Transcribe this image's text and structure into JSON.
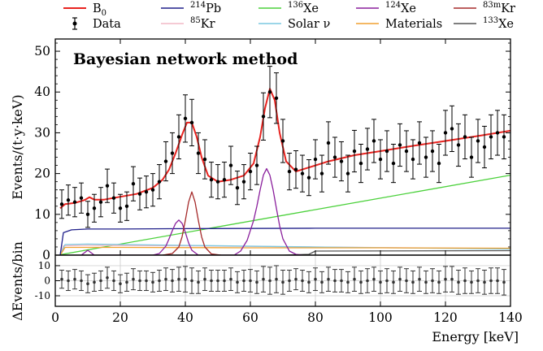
{
  "chart_data": [
    {
      "type": "line",
      "title": "Bayesian network method",
      "ylabel": "Events/(t·y·keV)",
      "xlim": [
        0,
        140
      ],
      "ylim": [
        0,
        53
      ],
      "xticks": [
        0,
        20,
        40,
        60,
        80,
        100,
        120,
        140
      ],
      "yticks": [
        0,
        10,
        20,
        30,
        40,
        50
      ],
      "legend_placement": "above plot",
      "legend": [
        {
          "key": "b0",
          "pre": "B",
          "sub": "0",
          "sup": "",
          "post": "",
          "color": "#e8231f",
          "kind": "line"
        },
        {
          "key": "data",
          "pre": "Data",
          "sub": "",
          "sup": "",
          "post": "",
          "color": "#000000",
          "kind": "errorbar"
        },
        {
          "key": "pb214",
          "pre": "",
          "sub": "",
          "sup": "214",
          "post": "Pb",
          "color": "#1f1f8a",
          "kind": "line"
        },
        {
          "key": "kr85",
          "pre": "",
          "sub": "",
          "sup": "85",
          "post": "Kr",
          "color": "#f2b8c6",
          "kind": "line"
        },
        {
          "key": "xe136",
          "pre": "",
          "sub": "",
          "sup": "136",
          "post": "Xe",
          "color": "#4bd13b",
          "kind": "line"
        },
        {
          "key": "solar",
          "pre": "Solar ν",
          "sub": "",
          "sup": "",
          "post": "",
          "color": "#7cc8e0",
          "kind": "line"
        },
        {
          "key": "xe124",
          "pre": "",
          "sub": "",
          "sup": "124",
          "post": "Xe",
          "color": "#8a1f9c",
          "kind": "line"
        },
        {
          "key": "materials",
          "pre": "Materials",
          "sub": "",
          "sup": "",
          "post": "",
          "color": "#f0a030",
          "kind": "line"
        },
        {
          "key": "kr83m",
          "pre": "",
          "sub": "",
          "sup": "83m",
          "post": "Kr",
          "color": "#a52a2a",
          "kind": "line"
        },
        {
          "key": "xe133",
          "pre": "",
          "sub": "",
          "sup": "133",
          "post": "Xe",
          "color": "#555555",
          "kind": "line"
        }
      ],
      "series": [
        {
          "name": "B0",
          "color": "#e8231f",
          "x": [
            1.5,
            3,
            6,
            9,
            10.5,
            12,
            15,
            20,
            25,
            30,
            33,
            35,
            37,
            39,
            40.5,
            42,
            43.5,
            45,
            47,
            50,
            54,
            58,
            61,
            63,
            64.5,
            66,
            67.5,
            69,
            71,
            74,
            78,
            84,
            92,
            100,
            110,
            120,
            130,
            140
          ],
          "y": [
            11.5,
            12.5,
            12.8,
            13.5,
            14.2,
            13.6,
            13.6,
            14.3,
            15,
            16.5,
            18.5,
            21,
            25,
            29.5,
            32.5,
            32.5,
            29,
            24,
            19.5,
            18,
            18.5,
            19.5,
            22.5,
            29,
            36,
            40.8,
            38,
            30,
            23,
            20.5,
            21.5,
            23,
            24.5,
            25.5,
            26.8,
            28,
            29.2,
            30.5
          ]
        },
        {
          "name": "214Pb",
          "color": "#1f1f8a",
          "x": [
            1.5,
            2.5,
            5,
            10,
            20,
            40,
            80,
            140
          ],
          "y": [
            0,
            5.5,
            6.2,
            6.4,
            6.4,
            6.5,
            6.6,
            6.6
          ]
        },
        {
          "name": "136Xe",
          "color": "#4bd13b",
          "x": [
            1.5,
            140
          ],
          "y": [
            0.1,
            19.6
          ]
        },
        {
          "name": "85Kr",
          "color": "#f2b8c6",
          "x": [
            1.5,
            2.5,
            10,
            40,
            80,
            140
          ],
          "y": [
            0,
            2.3,
            2.4,
            2.3,
            2.0,
            1.6
          ]
        },
        {
          "name": "Solar ν",
          "color": "#7cc8e0",
          "x": [
            1.5,
            3,
            10,
            40,
            80,
            140
          ],
          "y": [
            0,
            2.6,
            2.7,
            2.4,
            2.0,
            1.5
          ]
        },
        {
          "name": "Materials",
          "color": "#f0a030",
          "x": [
            1.5,
            3,
            20,
            60,
            100,
            140
          ],
          "y": [
            0,
            1.9,
            1.9,
            1.8,
            1.8,
            1.7
          ]
        },
        {
          "name": "133Xe",
          "color": "#555555",
          "x": [
            1.5,
            70,
            78,
            80,
            140
          ],
          "y": [
            0,
            0,
            0.2,
            1.0,
            1.1
          ]
        },
        {
          "name": "124Xe",
          "color": "#8a1f9c",
          "x": [
            8,
            9,
            10,
            11,
            12,
            13,
            30,
            32,
            34,
            35,
            36,
            37,
            38,
            39,
            40,
            41,
            42,
            44,
            55,
            57,
            59,
            61,
            62,
            63,
            64,
            65,
            66,
            67,
            68,
            69,
            70,
            72,
            74,
            76
          ],
          "y": [
            0,
            0.6,
            1.2,
            0.6,
            0,
            0,
            0,
            0.4,
            2.2,
            4.0,
            6.0,
            7.8,
            8.6,
            7.8,
            5.6,
            3.0,
            1.2,
            0,
            0,
            1.0,
            3.6,
            8.5,
            12,
            16,
            19.6,
            21.2,
            19.6,
            16,
            11.5,
            7.2,
            4.0,
            1.0,
            0.2,
            0
          ]
        },
        {
          "name": "83mKr",
          "color": "#a52a2a",
          "x": [
            33,
            36,
            38,
            39,
            40,
            41,
            42,
            43,
            44,
            45,
            46,
            48,
            51
          ],
          "y": [
            0,
            0.4,
            2.0,
            4.5,
            8.5,
            13,
            15.5,
            13,
            8.5,
            4.5,
            2.0,
            0.3,
            0
          ]
        }
      ],
      "data_points": {
        "x": [
          2,
          4,
          6,
          8,
          10,
          12,
          14,
          16,
          18,
          20,
          22,
          24,
          26,
          28,
          30,
          32,
          34,
          36,
          38,
          40,
          42,
          44,
          46,
          48,
          50,
          52,
          54,
          56,
          58,
          60,
          62,
          64,
          66,
          68,
          70,
          72,
          74,
          76,
          78,
          80,
          82,
          84,
          86,
          88,
          90,
          92,
          94,
          96,
          98,
          100,
          102,
          104,
          106,
          108,
          110,
          112,
          114,
          116,
          118,
          120,
          122,
          124,
          126,
          128,
          130,
          132,
          134,
          136,
          138
        ],
        "y": [
          12.5,
          13.5,
          13.0,
          14.0,
          10.0,
          11.5,
          13.0,
          17.0,
          14.0,
          11.5,
          12.0,
          17.5,
          15.0,
          15.5,
          16.0,
          18.0,
          23.0,
          25.0,
          29.0,
          33.5,
          32.5,
          25.0,
          23.5,
          18.5,
          18.0,
          18.5,
          22.0,
          16.5,
          18.0,
          20.5,
          22.0,
          34.0,
          40.0,
          38.5,
          28.0,
          20.5,
          21.0,
          20.0,
          19.0,
          23.5,
          20.0,
          27.5,
          24.0,
          23.0,
          20.0,
          25.5,
          22.5,
          26.0,
          28.0,
          23.5,
          25.5,
          22.5,
          27.0,
          25.5,
          23.5,
          27.5,
          24.0,
          25.5,
          22.5,
          30.0,
          31.0,
          27.0,
          29.0,
          24.0,
          28.0,
          26.5,
          29.0,
          30.0,
          29.0
        ],
        "yerr": [
          3.5,
          3.7,
          3.6,
          3.7,
          3.2,
          3.4,
          3.6,
          4.1,
          3.7,
          3.4,
          3.5,
          4.2,
          3.9,
          3.9,
          4.0,
          4.2,
          4.8,
          5.0,
          5.4,
          5.8,
          5.7,
          5.0,
          4.8,
          4.3,
          4.2,
          4.3,
          4.7,
          4.1,
          4.2,
          4.5,
          4.7,
          5.8,
          6.3,
          6.2,
          5.3,
          4.5,
          4.6,
          4.5,
          4.4,
          4.8,
          4.5,
          5.2,
          4.9,
          4.8,
          4.5,
          5.1,
          4.7,
          5.1,
          5.3,
          4.8,
          5.0,
          4.7,
          5.2,
          5.0,
          4.8,
          5.2,
          4.9,
          5.0,
          4.7,
          5.5,
          5.6,
          5.2,
          5.4,
          4.9,
          5.3,
          5.1,
          5.4,
          5.5,
          5.4
        ]
      }
    },
    {
      "type": "scatter",
      "xlabel": "Energy [keV]",
      "ylabel": "ΔEvents/bin",
      "xlim": [
        0,
        140
      ],
      "ylim": [
        -17,
        17
      ],
      "xticks": [
        0,
        20,
        40,
        60,
        80,
        100,
        120,
        140
      ],
      "yticks": [
        -10,
        0,
        10
      ],
      "grid": true,
      "residuals": {
        "x": [
          2,
          4,
          6,
          8,
          10,
          12,
          14,
          16,
          18,
          20,
          22,
          24,
          26,
          28,
          30,
          32,
          34,
          36,
          38,
          40,
          42,
          44,
          46,
          48,
          50,
          52,
          54,
          56,
          58,
          60,
          62,
          64,
          66,
          68,
          70,
          72,
          74,
          76,
          78,
          80,
          82,
          84,
          86,
          88,
          90,
          92,
          94,
          96,
          98,
          100,
          102,
          104,
          106,
          108,
          110,
          112,
          114,
          116,
          118,
          120,
          122,
          124,
          126,
          128,
          130,
          132,
          134,
          136,
          138
        ],
        "y": [
          1,
          0,
          1,
          0,
          -2,
          -1,
          0,
          2,
          0,
          -2,
          -1,
          1,
          0,
          0,
          -1,
          0,
          1,
          0,
          1,
          1,
          0,
          -1,
          1,
          0,
          0,
          0,
          1,
          -1,
          0,
          0,
          -1,
          1,
          0,
          1,
          -1,
          0,
          1,
          0,
          -1,
          1,
          -1,
          1,
          0,
          0,
          -1,
          1,
          -1,
          0,
          1,
          -1,
          0,
          -1,
          1,
          0,
          -1,
          1,
          -1,
          0,
          -1,
          1,
          1,
          -1,
          0,
          -1,
          0,
          -1,
          0,
          0,
          -1
        ],
        "yerr": [
          6,
          6.5,
          6.5,
          6.5,
          6,
          6,
          6.5,
          7,
          6.5,
          6,
          6,
          7,
          6.5,
          6.5,
          6.5,
          7,
          7.5,
          7.5,
          8,
          8.5,
          8.5,
          7.5,
          7.5,
          7,
          7,
          7,
          7.5,
          7,
          7,
          7.5,
          7.5,
          8.5,
          9,
          9,
          8,
          7,
          7,
          7,
          7,
          7.5,
          7,
          8,
          7.5,
          7.5,
          7,
          8,
          7.5,
          8,
          8,
          7.5,
          8,
          7.5,
          8,
          8,
          7.5,
          8,
          7.5,
          8,
          7.5,
          8.5,
          8.5,
          8,
          8.5,
          7.5,
          8,
          8,
          8.5,
          8.5,
          8.5
        ]
      }
    }
  ]
}
